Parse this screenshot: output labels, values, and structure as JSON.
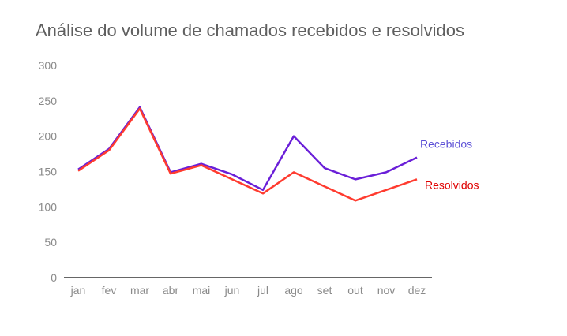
{
  "chart_data": {
    "type": "line",
    "title": "Análise do volume de chamados recebidos e resolvidos",
    "xlabel": "",
    "ylabel": "",
    "categories": [
      "jan",
      "fev",
      "mar",
      "abr",
      "mai",
      "jun",
      "jul",
      "ago",
      "set",
      "out",
      "nov",
      "dez"
    ],
    "ylim": [
      0,
      300
    ],
    "yticks": [
      0,
      50,
      100,
      150,
      200,
      250,
      300
    ],
    "grid": false,
    "legend": "inline-right",
    "series": [
      {
        "name": "Recebidos",
        "color": "#6a1fd8",
        "label_color": "#5b4fd6",
        "values": [
          153,
          182,
          241,
          149,
          161,
          146,
          124,
          200,
          155,
          139,
          149,
          170
        ]
      },
      {
        "name": "Resolvidos",
        "color": "#ff3b2f",
        "label_color": "#e00000",
        "values": [
          151,
          180,
          239,
          147,
          159,
          139,
          119,
          149,
          129,
          109,
          124,
          139
        ]
      }
    ]
  }
}
